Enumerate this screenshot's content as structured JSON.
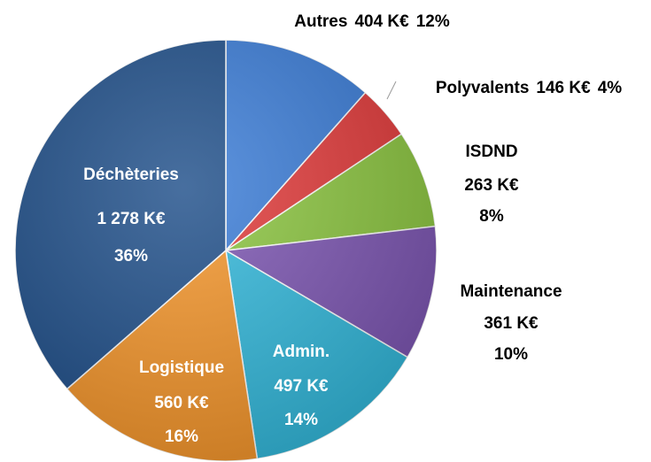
{
  "chart_data": {
    "type": "pie",
    "categories": [
      "Autres",
      "Polyvalents",
      "ISDND",
      "Maintenance",
      "Admin.",
      "Logistique",
      "Déchèteries"
    ],
    "values": [
      404,
      146,
      263,
      361,
      497,
      560,
      1278
    ],
    "value_labels": [
      "404 K€",
      "146 K€",
      "263 K€",
      "361 K€",
      "497 K€",
      "560 K€",
      "1 278 K€"
    ],
    "percentages": [
      12,
      4,
      8,
      10,
      14,
      16,
      36
    ],
    "percentage_labels": [
      "12%",
      "4%",
      "8%",
      "10%",
      "14%",
      "16%",
      "36%"
    ],
    "colors": [
      "#3b7dd8",
      "#e23a3a",
      "#8cc640",
      "#7d56b3",
      "#33b9dc",
      "#f5962b",
      "#1f4f8a"
    ]
  }
}
